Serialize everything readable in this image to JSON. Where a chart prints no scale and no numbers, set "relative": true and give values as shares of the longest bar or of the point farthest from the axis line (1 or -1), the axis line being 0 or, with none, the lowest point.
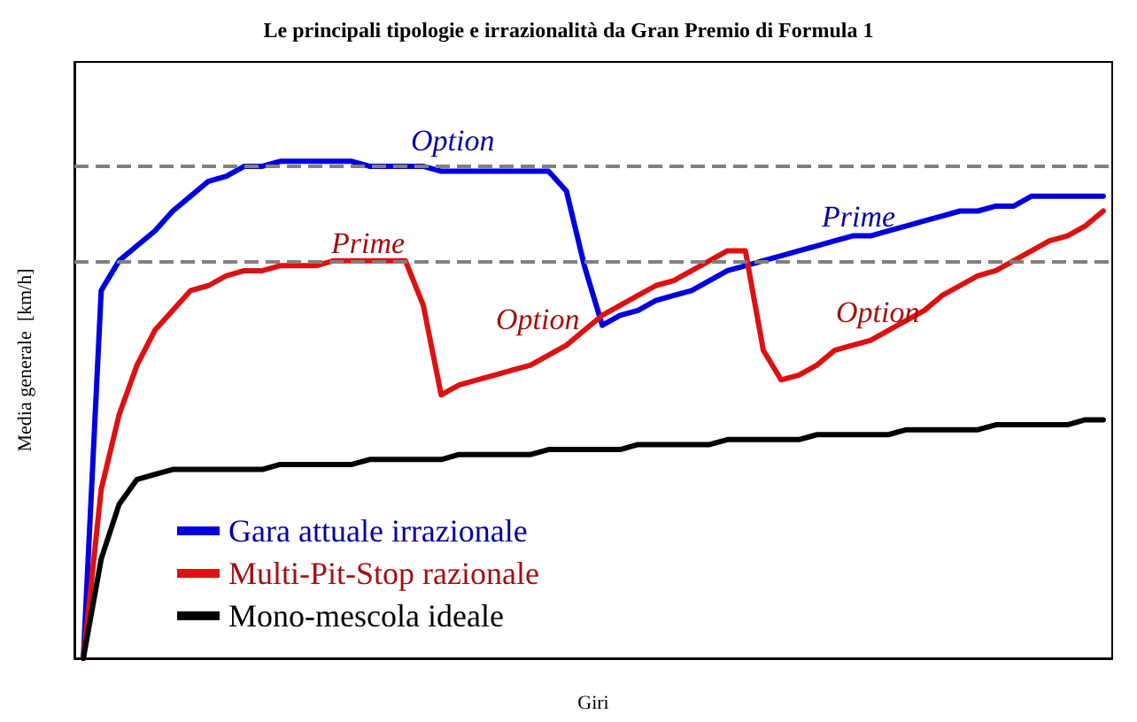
{
  "chart_data": {
    "type": "line",
    "relative": true,
    "title": "Le principali tipologie e irrazionalità da Gran Premio di Formula 1",
    "xlabel": "Giri",
    "ylabel": "Media generale  [km/h]",
    "categories": [
      null,
      null,
      null,
      null,
      null,
      null,
      null,
      null,
      null,
      null,
      null,
      null,
      null,
      null,
      null,
      null,
      null,
      null,
      null,
      null,
      null,
      null,
      null,
      null,
      null,
      null,
      null,
      null,
      null,
      null,
      null,
      null,
      null,
      null,
      null,
      null,
      null,
      null,
      null,
      null,
      null,
      null,
      null,
      null,
      null,
      null,
      null,
      null,
      null,
      null,
      null,
      null,
      null,
      null,
      null,
      null,
      null,
      null
    ],
    "series": [
      {
        "name": "Gara attuale irrazionale",
        "color": "#0000dd",
        "values": [
          0,
          0.74,
          0.8,
          0.83,
          0.86,
          0.9,
          0.93,
          0.96,
          0.97,
          0.99,
          0.99,
          1,
          1,
          1,
          1,
          1,
          0.99,
          0.99,
          0.99,
          0.99,
          0.98,
          0.98,
          0.98,
          0.98,
          0.98,
          0.98,
          0.98,
          0.94,
          0.79,
          0.67,
          0.69,
          0.7,
          0.72,
          0.73,
          0.74,
          0.76,
          0.78,
          0.79,
          0.8,
          0.81,
          0.82,
          0.83,
          0.84,
          0.85,
          0.85,
          0.86,
          0.87,
          0.88,
          0.89,
          0.9,
          0.9,
          0.91,
          0.91,
          0.93,
          0.93,
          0.93,
          0.93,
          0.93
        ]
      },
      {
        "name": "Multi-Pit-Stop razionale",
        "color": "#dd1111",
        "values": [
          0,
          0.34,
          0.49,
          0.59,
          0.66,
          0.7,
          0.74,
          0.75,
          0.77,
          0.78,
          0.78,
          0.79,
          0.79,
          0.79,
          0.8,
          0.8,
          0.8,
          0.8,
          0.8,
          0.71,
          0.53,
          0.55,
          0.56,
          0.57,
          0.58,
          0.59,
          0.61,
          0.63,
          0.66,
          0.69,
          0.71,
          0.73,
          0.75,
          0.76,
          0.78,
          0.8,
          0.82,
          0.82,
          0.62,
          0.56,
          0.57,
          0.59,
          0.62,
          0.63,
          0.64,
          0.66,
          0.68,
          0.7,
          0.73,
          0.75,
          0.77,
          0.78,
          0.8,
          0.82,
          0.84,
          0.85,
          0.87,
          0.9
        ]
      },
      {
        "name": "Mono-mescola ideale",
        "color": "#000000",
        "values": [
          0,
          0.2,
          0.31,
          0.36,
          0.37,
          0.38,
          0.38,
          0.38,
          0.38,
          0.38,
          0.38,
          0.39,
          0.39,
          0.39,
          0.39,
          0.39,
          0.4,
          0.4,
          0.4,
          0.4,
          0.4,
          0.41,
          0.41,
          0.41,
          0.41,
          0.41,
          0.42,
          0.42,
          0.42,
          0.42,
          0.42,
          0.43,
          0.43,
          0.43,
          0.43,
          0.43,
          0.44,
          0.44,
          0.44,
          0.44,
          0.44,
          0.45,
          0.45,
          0.45,
          0.45,
          0.45,
          0.46,
          0.46,
          0.46,
          0.46,
          0.46,
          0.47,
          0.47,
          0.47,
          0.47,
          0.47,
          0.48,
          0.48
        ]
      }
    ],
    "ref_lines": [
      {
        "axis": "y",
        "value": 0.99,
        "color": "#808080",
        "line_style": "dashed"
      },
      {
        "axis": "y",
        "value": 0.8,
        "color": "#808080",
        "line_style": "dashed"
      }
    ],
    "annotations": [
      "Option",
      "Prime",
      "Option",
      "Prime",
      "Option"
    ],
    "legend": "bottom left",
    "grid": false,
    "marker": "none",
    "line_style": "solid"
  }
}
